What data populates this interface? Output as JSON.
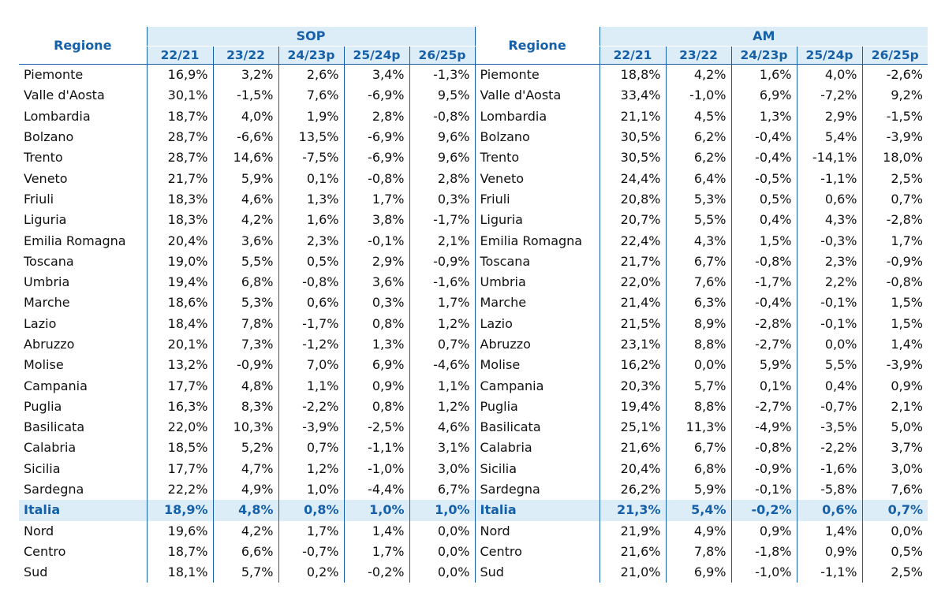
{
  "table": {
    "region_header": "Regione",
    "group_left": "SOP",
    "group_right": "AM",
    "columns": [
      "22/21",
      "23/22",
      "24/23p",
      "25/24p",
      "26/25p"
    ],
    "rows": [
      {
        "name": "Piemonte",
        "sop": [
          "16,9%",
          "3,2%",
          "2,6%",
          "3,4%",
          "-1,3%"
        ],
        "am": [
          "18,8%",
          "4,2%",
          "1,6%",
          "4,0%",
          "-2,6%"
        ]
      },
      {
        "name": "Valle d'Aosta",
        "sop": [
          "30,1%",
          "-1,5%",
          "7,6%",
          "-6,9%",
          "9,5%"
        ],
        "am": [
          "33,4%",
          "-1,0%",
          "6,9%",
          "-7,2%",
          "9,2%"
        ]
      },
      {
        "name": "Lombardia",
        "sop": [
          "18,7%",
          "4,0%",
          "1,9%",
          "2,8%",
          "-0,8%"
        ],
        "am": [
          "21,1%",
          "4,5%",
          "1,3%",
          "2,9%",
          "-1,5%"
        ]
      },
      {
        "name": "Bolzano",
        "sop": [
          "28,7%",
          "-6,6%",
          "13,5%",
          "-6,9%",
          "9,6%"
        ],
        "am": [
          "30,5%",
          "6,2%",
          "-0,4%",
          "5,4%",
          "-3,9%"
        ]
      },
      {
        "name": "Trento",
        "sop": [
          "28,7%",
          "14,6%",
          "-7,5%",
          "-6,9%",
          "9,6%"
        ],
        "am": [
          "30,5%",
          "6,2%",
          "-0,4%",
          "-14,1%",
          "18,0%"
        ]
      },
      {
        "name": "Veneto",
        "sop": [
          "21,7%",
          "5,9%",
          "0,1%",
          "-0,8%",
          "2,8%"
        ],
        "am": [
          "24,4%",
          "6,4%",
          "-0,5%",
          "-1,1%",
          "2,5%"
        ]
      },
      {
        "name": "Friuli",
        "sop": [
          "18,3%",
          "4,6%",
          "1,3%",
          "1,7%",
          "0,3%"
        ],
        "am": [
          "20,8%",
          "5,3%",
          "0,5%",
          "0,6%",
          "0,7%"
        ]
      },
      {
        "name": "Liguria",
        "sop": [
          "18,3%",
          "4,2%",
          "1,6%",
          "3,8%",
          "-1,7%"
        ],
        "am": [
          "20,7%",
          "5,5%",
          "0,4%",
          "4,3%",
          "-2,8%"
        ]
      },
      {
        "name": "Emilia Romagna",
        "sop": [
          "20,4%",
          "3,6%",
          "2,3%",
          "-0,1%",
          "2,1%"
        ],
        "am": [
          "22,4%",
          "4,3%",
          "1,5%",
          "-0,3%",
          "1,7%"
        ]
      },
      {
        "name": "Toscana",
        "sop": [
          "19,0%",
          "5,5%",
          "0,5%",
          "2,9%",
          "-0,9%"
        ],
        "am": [
          "21,7%",
          "6,7%",
          "-0,8%",
          "2,3%",
          "-0,9%"
        ]
      },
      {
        "name": "Umbria",
        "sop": [
          "19,4%",
          "6,8%",
          "-0,8%",
          "3,6%",
          "-1,6%"
        ],
        "am": [
          "22,0%",
          "7,6%",
          "-1,7%",
          "2,2%",
          "-0,8%"
        ]
      },
      {
        "name": "Marche",
        "sop": [
          "18,6%",
          "5,3%",
          "0,6%",
          "0,3%",
          "1,7%"
        ],
        "am": [
          "21,4%",
          "6,3%",
          "-0,4%",
          "-0,1%",
          "1,5%"
        ]
      },
      {
        "name": "Lazio",
        "sop": [
          "18,4%",
          "7,8%",
          "-1,7%",
          "0,8%",
          "1,2%"
        ],
        "am": [
          "21,5%",
          "8,9%",
          "-2,8%",
          "-0,1%",
          "1,5%"
        ]
      },
      {
        "name": "Abruzzo",
        "sop": [
          "20,1%",
          "7,3%",
          "-1,2%",
          "1,3%",
          "0,7%"
        ],
        "am": [
          "23,1%",
          "8,8%",
          "-2,7%",
          "0,0%",
          "1,4%"
        ]
      },
      {
        "name": "Molise",
        "sop": [
          "13,2%",
          "-0,9%",
          "7,0%",
          "6,9%",
          "-4,6%"
        ],
        "am": [
          "16,2%",
          "0,0%",
          "5,9%",
          "5,5%",
          "-3,9%"
        ]
      },
      {
        "name": "Campania",
        "sop": [
          "17,7%",
          "4,8%",
          "1,1%",
          "0,9%",
          "1,1%"
        ],
        "am": [
          "20,3%",
          "5,7%",
          "0,1%",
          "0,4%",
          "0,9%"
        ]
      },
      {
        "name": "Puglia",
        "sop": [
          "16,3%",
          "8,3%",
          "-2,2%",
          "0,8%",
          "1,2%"
        ],
        "am": [
          "19,4%",
          "8,8%",
          "-2,7%",
          "-0,7%",
          "2,1%"
        ]
      },
      {
        "name": "Basilicata",
        "sop": [
          "22,0%",
          "10,3%",
          "-3,9%",
          "-2,5%",
          "4,6%"
        ],
        "am": [
          "25,1%",
          "11,3%",
          "-4,9%",
          "-3,5%",
          "5,0%"
        ]
      },
      {
        "name": "Calabria",
        "sop": [
          "18,5%",
          "5,2%",
          "0,7%",
          "-1,1%",
          "3,1%"
        ],
        "am": [
          "21,6%",
          "6,7%",
          "-0,8%",
          "-2,2%",
          "3,7%"
        ]
      },
      {
        "name": "Sicilia",
        "sop": [
          "17,7%",
          "4,7%",
          "1,2%",
          "-1,0%",
          "3,0%"
        ],
        "am": [
          "20,4%",
          "6,8%",
          "-0,9%",
          "-1,6%",
          "3,0%"
        ]
      },
      {
        "name": "Sardegna",
        "sop": [
          "22,2%",
          "4,9%",
          "1,0%",
          "-4,4%",
          "6,7%"
        ],
        "am": [
          "26,2%",
          "5,9%",
          "-0,1%",
          "-5,8%",
          "7,6%"
        ]
      },
      {
        "name": "Italia",
        "highlight": true,
        "sop": [
          "18,9%",
          "4,8%",
          "0,8%",
          "1,0%",
          "1,0%"
        ],
        "am": [
          "21,3%",
          "5,4%",
          "-0,2%",
          "0,6%",
          "0,7%"
        ]
      },
      {
        "name": "Nord",
        "sop": [
          "19,6%",
          "4,2%",
          "1,7%",
          "1,4%",
          "0,0%"
        ],
        "am": [
          "21,9%",
          "4,9%",
          "0,9%",
          "1,4%",
          "0,0%"
        ]
      },
      {
        "name": "Centro",
        "sop": [
          "18,7%",
          "6,6%",
          "-0,7%",
          "1,7%",
          "0,0%"
        ],
        "am": [
          "21,6%",
          "7,8%",
          "-1,8%",
          "0,9%",
          "0,5%"
        ]
      },
      {
        "name": "Sud",
        "sop": [
          "18,1%",
          "5,7%",
          "0,2%",
          "-0,2%",
          "0,0%"
        ],
        "am": [
          "21,0%",
          "6,9%",
          "-1,0%",
          "-1,1%",
          "2,5%"
        ]
      }
    ]
  },
  "colors": {
    "accent": "#1560a8",
    "header_bg": "#dcedf8"
  }
}
